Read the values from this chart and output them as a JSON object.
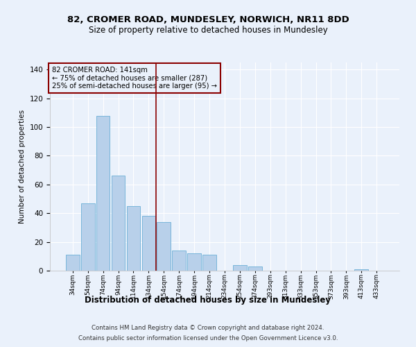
{
  "title1": "82, CROMER ROAD, MUNDESLEY, NORWICH, NR11 8DD",
  "title2": "Size of property relative to detached houses in Mundesley",
  "xlabel": "Distribution of detached houses by size in Mundesley",
  "ylabel": "Number of detached properties",
  "footnote1": "Contains HM Land Registry data © Crown copyright and database right 2024.",
  "footnote2": "Contains public sector information licensed under the Open Government Licence v3.0.",
  "annotation_line1": "82 CROMER ROAD: 141sqm",
  "annotation_line2": "← 75% of detached houses are smaller (287)",
  "annotation_line3": "25% of semi-detached houses are larger (95) →",
  "bar_labels": [
    "34sqm",
    "54sqm",
    "74sqm",
    "94sqm",
    "114sqm",
    "134sqm",
    "154sqm",
    "174sqm",
    "194sqm",
    "214sqm",
    "234sqm",
    "254sqm",
    "274sqm",
    "293sqm",
    "313sqm",
    "333sqm",
    "353sqm",
    "373sqm",
    "393sqm",
    "413sqm",
    "433sqm"
  ],
  "bar_values": [
    11,
    47,
    108,
    66,
    45,
    38,
    34,
    14,
    12,
    11,
    0,
    4,
    3,
    0,
    0,
    0,
    0,
    0,
    0,
    1,
    0
  ],
  "bar_color": "#b8d0ea",
  "bar_edge_color": "#6aaed6",
  "vline_x_index": 5,
  "vline_color": "#8b0000",
  "box_color": "#8b0000",
  "ylim": [
    0,
    145
  ],
  "background_color": "#eaf1fb"
}
